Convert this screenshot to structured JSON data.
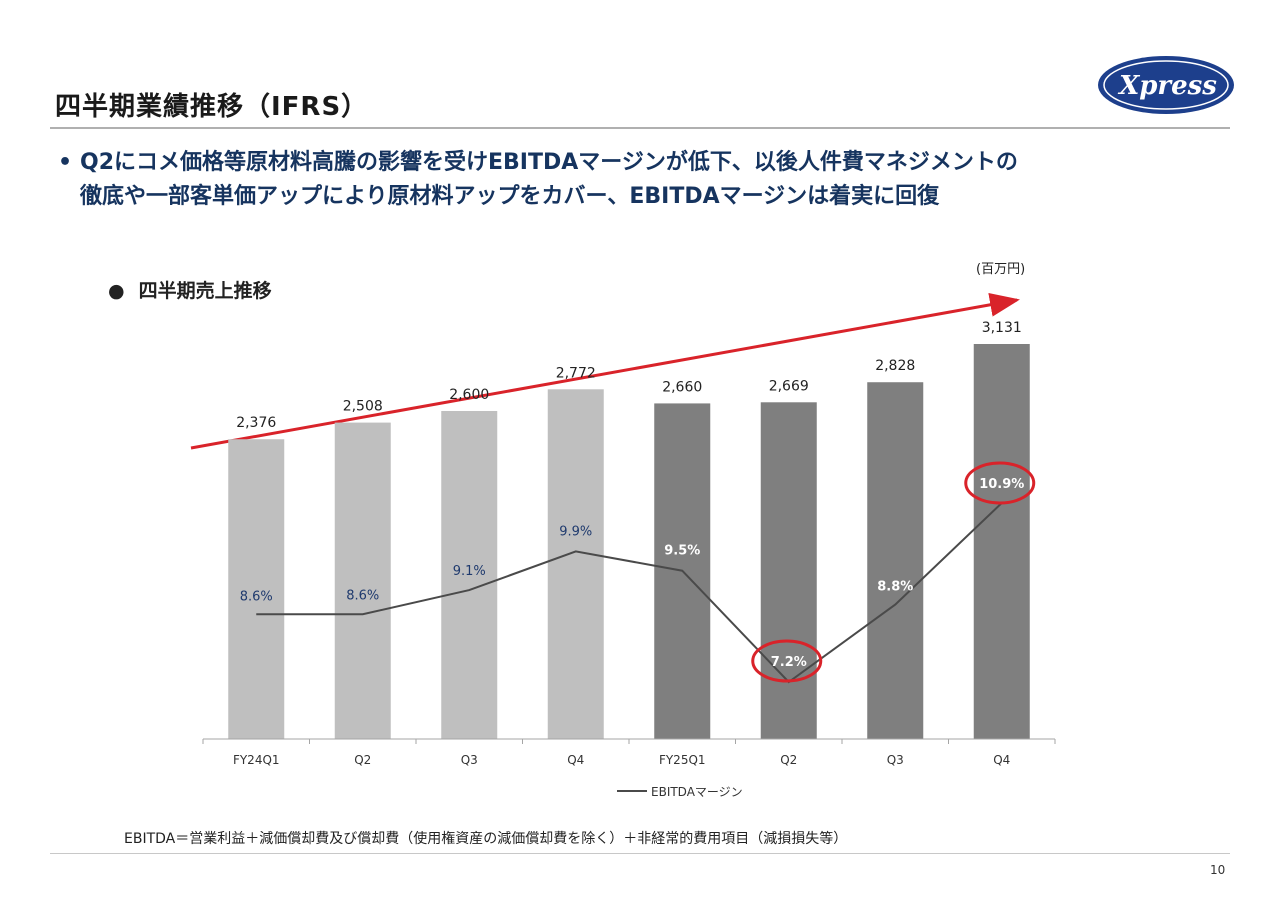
{
  "header": {
    "title": "四半期業績推移（IFRS）",
    "logo_text": "Xpress"
  },
  "bullet": {
    "marker": "•",
    "line1": "Q2にコメ価格等原材料高騰の影響を受けEBITDAマージンが低下、以後人件費マネジメントの",
    "line2": "徹底や一部客単価アップにより原材料アップをカバー、EBITDAマージンは着実に回復"
  },
  "section": {
    "marker": "●",
    "label": "四半期売上推移"
  },
  "unit_label": "(百万円)",
  "chart_data": {
    "type": "bar",
    "categories": [
      "FY24Q1",
      "Q2",
      "Q3",
      "Q4",
      "FY25Q1",
      "Q2",
      "Q3",
      "Q4"
    ],
    "series": [
      {
        "name": "売上",
        "values": [
          2376,
          2508,
          2600,
          2772,
          2660,
          2669,
          2828,
          3131
        ],
        "value_labels": [
          "2,376",
          "2,508",
          "2,600",
          "2,772",
          "2,660",
          "2,669",
          "2,828",
          "3,131"
        ]
      },
      {
        "name": "EBITDAマージン",
        "type": "line",
        "values": [
          8.6,
          8.6,
          9.1,
          9.9,
          9.5,
          7.2,
          8.8,
          10.9
        ],
        "value_labels": [
          "8.6%",
          "8.6%",
          "9.1%",
          "9.9%",
          "9.5%",
          "7.2%",
          "8.8%",
          "10.9%"
        ]
      }
    ],
    "ylim_sales": [
      0,
      3131
    ],
    "ylim_margin": [
      0,
      12
    ],
    "legend": "bottom",
    "legend_label": "EBITDAマージン",
    "highlighted_margin_indices": [
      5,
      7
    ],
    "colors": {
      "fy24_bar": "#bfbfbf",
      "fy25_bar": "#7f7f7f",
      "line": "#4a4a4a",
      "label_fy24": "#1f3a6e",
      "label_fy25": "#ffffff",
      "arrow": "#d9232a",
      "circle": "#d9232a"
    }
  },
  "footer": {
    "footnote": "EBITDA＝営業利益＋減価償却費及び償却費（使用権資産の減価償却費を除く）＋非経常的費用項目（減損損失等）",
    "page_number": "10"
  }
}
